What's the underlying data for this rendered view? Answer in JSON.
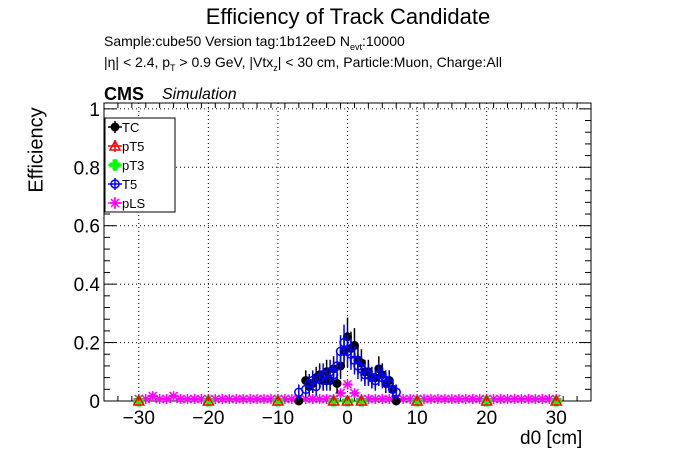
{
  "title": "Efficiency of Track Candidate",
  "subtitle_line1": "Sample:cube50   Version tag:1b12eeD  N",
  "subtitle_line1_sub": "evt",
  "subtitle_line1_tail": ":10000",
  "subtitle_line2_a": "|η| < 2.4, p",
  "subtitle_line2_sub1": "T",
  "subtitle_line2_b": " > 0.9 GeV, |Vtx",
  "subtitle_line2_sub2": "z",
  "subtitle_line2_c": "| < 30 cm, Particle:Muon, Charge:All",
  "cms_label": "CMS",
  "simulation_label": "Simulation",
  "colors": {
    "TC": "#000000",
    "pT5": "#ff0000",
    "pT3": "#00ff00",
    "T5": "#0000ff",
    "pLS": "#ff00ff"
  },
  "chart_data": {
    "type": "scatter",
    "xlabel": "d0 [cm]",
    "ylabel": "Efficiency",
    "xlim": [
      -35,
      35
    ],
    "ylim": [
      0,
      1.02
    ],
    "xticks": [
      -30,
      -20,
      -10,
      0,
      10,
      20,
      30
    ],
    "xtick_labels": [
      "−30",
      "−20",
      "−10",
      "0",
      "10",
      "20",
      "30"
    ],
    "yticks": [
      0,
      0.2,
      0.4,
      0.6,
      0.8,
      1
    ],
    "ytick_labels": [
      "0",
      "0.2",
      "0.4",
      "0.6",
      "0.8",
      "1"
    ],
    "grid": true,
    "legend_position": "top-left",
    "series": [
      {
        "name": "TC",
        "marker": "circle-filled",
        "x": [
          -7,
          -6,
          -5.5,
          -5,
          -4.5,
          -4,
          -3.5,
          -3,
          -2.5,
          -2,
          -1.5,
          -1,
          -0.5,
          0,
          0.5,
          1,
          1.5,
          2,
          2.5,
          3,
          3.5,
          4,
          4.5,
          5,
          5.5,
          6,
          6.5,
          7
        ],
        "y": [
          0.0,
          0.07,
          0.05,
          0.06,
          0.08,
          0.09,
          0.07,
          0.1,
          0.07,
          0.11,
          0.06,
          0.12,
          0.17,
          0.22,
          0.18,
          0.19,
          0.14,
          0.13,
          0.1,
          0.1,
          0.08,
          0.08,
          0.11,
          0.09,
          0.06,
          0.07,
          0.04,
          0.0
        ]
      },
      {
        "name": "pT5",
        "marker": "triangle-open",
        "x": [
          -30,
          -20,
          -10,
          -2,
          0,
          2,
          10,
          20,
          30
        ],
        "y": [
          0,
          0,
          0,
          0,
          0,
          0,
          0,
          0,
          0
        ]
      },
      {
        "name": "pT3",
        "marker": "cross-filled",
        "x": [
          -30,
          -20,
          -10,
          -2,
          0,
          2,
          10,
          20,
          30
        ],
        "y": [
          0,
          0,
          0,
          0,
          0,
          0,
          0,
          0,
          0
        ]
      },
      {
        "name": "T5",
        "marker": "circle-open",
        "x": [
          -7,
          -6,
          -5.5,
          -5,
          -4.5,
          -4,
          -3.5,
          -3,
          -2.5,
          -2,
          -1.5,
          -1,
          -0.5,
          0,
          0.5,
          1,
          1.5,
          2,
          2.5,
          3,
          3.5,
          4,
          4.5,
          5,
          5.5,
          6,
          6.5,
          7
        ],
        "y": [
          0.03,
          0.04,
          0.06,
          0.07,
          0.05,
          0.08,
          0.09,
          0.07,
          0.1,
          0.09,
          0.12,
          0.17,
          0.2,
          0.17,
          0.16,
          0.14,
          0.12,
          0.11,
          0.09,
          0.09,
          0.08,
          0.07,
          0.09,
          0.08,
          0.07,
          0.06,
          0.04,
          0.03
        ]
      },
      {
        "name": "pLS",
        "marker": "star-open",
        "x": [
          -30,
          -29,
          -28,
          -27,
          -26,
          -25,
          -24,
          -23,
          -22,
          -21,
          -20,
          -19,
          -18,
          -17,
          -16,
          -15,
          -14,
          -13,
          -12,
          -11,
          -10,
          -9,
          -8,
          -7,
          -6,
          -5,
          -4,
          -3,
          -2,
          -1,
          0,
          1,
          2,
          3,
          4,
          5,
          6,
          7,
          8,
          9,
          10,
          11,
          12,
          13,
          14,
          15,
          16,
          17,
          18,
          19,
          20,
          21,
          22,
          23,
          24,
          25,
          26,
          27,
          28,
          29,
          30
        ],
        "y": [
          0.0,
          0.0,
          0.01,
          0.0,
          0.0,
          0.01,
          0.0,
          0.0,
          0.0,
          0.0,
          0.0,
          0.0,
          0.0,
          0.0,
          0.0,
          0.0,
          0.0,
          0.0,
          0.0,
          0.0,
          0.0,
          0.0,
          0.0,
          0.0,
          0.0,
          0.0,
          0.0,
          0.0,
          0.0,
          0.02,
          0.05,
          0.02,
          0.0,
          0.0,
          0.0,
          0.0,
          0.0,
          0.0,
          0.0,
          0.0,
          0.0,
          0.0,
          0.0,
          0.0,
          0.0,
          0.0,
          0.0,
          0.0,
          0.0,
          0.0,
          0.0,
          0.0,
          0.0,
          0.0,
          0.0,
          0.0,
          0.0,
          0.0,
          0.0,
          0.0,
          0.0
        ]
      }
    ]
  }
}
